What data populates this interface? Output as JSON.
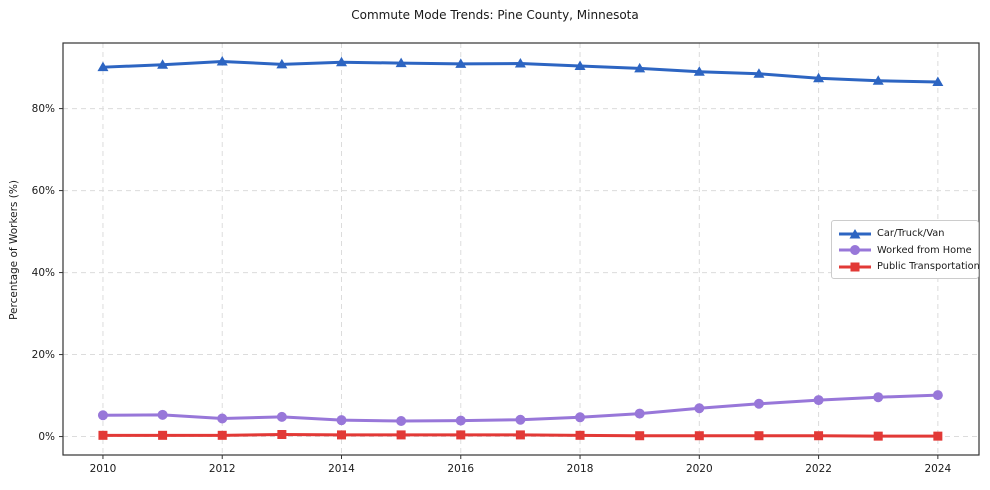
{
  "chart_data": {
    "type": "line",
    "title": "Commute Mode Trends: Pine County, Minnesota",
    "xlabel": "",
    "ylabel": "Percentage of Workers (%)",
    "x": [
      2010,
      2011,
      2012,
      2013,
      2014,
      2015,
      2016,
      2017,
      2018,
      2019,
      2020,
      2021,
      2022,
      2023,
      2024
    ],
    "x_ticks": [
      2010,
      2012,
      2014,
      2016,
      2018,
      2020,
      2022,
      2024
    ],
    "x_tick_labels": [
      "2010",
      "2012",
      "2014",
      "2016",
      "2018",
      "2020",
      "2022",
      "2024"
    ],
    "y_ticks": [
      0,
      20,
      40,
      60,
      80
    ],
    "y_tick_labels": [
      "0%",
      "20%",
      "40%",
      "60%",
      "80%"
    ],
    "xlim": [
      2009.33,
      2024.69
    ],
    "ylim": [
      -4.5,
      96
    ],
    "grid": true,
    "grid_style": "dashed",
    "legend_position": "center right",
    "series": [
      {
        "name": "Car/Truck/Van",
        "marker": "triangle",
        "color": "#2d65c2",
        "values": [
          90.1,
          90.7,
          91.5,
          90.8,
          91.3,
          91.1,
          90.9,
          91.0,
          90.4,
          89.8,
          89.0,
          88.5,
          87.4,
          86.8,
          86.5
        ]
      },
      {
        "name": "Worked from Home",
        "marker": "circle",
        "color": "#9877d9",
        "values": [
          5.2,
          5.3,
          4.4,
          4.8,
          4.0,
          3.8,
          3.9,
          4.1,
          4.7,
          5.6,
          6.9,
          8.0,
          8.9,
          9.6,
          10.1
        ]
      },
      {
        "name": "Public Transportation",
        "marker": "square",
        "color": "#e23936",
        "values": [
          0.3,
          0.3,
          0.3,
          0.5,
          0.4,
          0.4,
          0.4,
          0.4,
          0.3,
          0.2,
          0.2,
          0.2,
          0.2,
          0.1,
          0.1
        ]
      }
    ],
    "colors": {
      "grid": "#dcdcdc",
      "axis_border": "#333333",
      "background": "#ffffff",
      "text": "#1a1a1a"
    }
  }
}
